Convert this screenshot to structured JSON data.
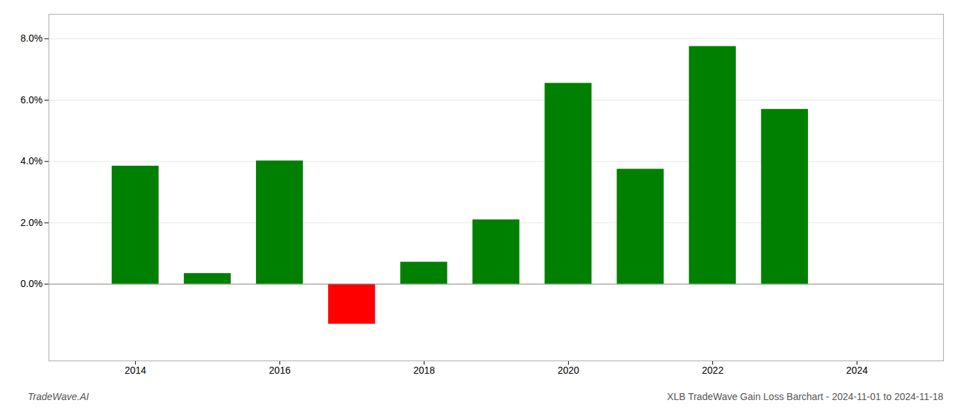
{
  "chart_data": {
    "type": "bar",
    "title": "XLB TradeWave Gain Loss Barchart - 2024-11-01 to 2024-11-18",
    "annotations": [
      "TradeWave.AI"
    ],
    "x": [
      2014,
      2015,
      2016,
      2017,
      2018,
      2019,
      2020,
      2021,
      2022,
      2023
    ],
    "values": [
      0.0385,
      0.0035,
      0.0402,
      -0.013,
      0.0072,
      0.021,
      0.0655,
      0.0375,
      0.0775,
      0.057
    ],
    "colors": [
      "#008000",
      "#008000",
      "#008000",
      "#ff0000",
      "#008000",
      "#008000",
      "#008000",
      "#008000",
      "#008000",
      "#008000"
    ],
    "xlim": [
      2012.8,
      2025.2
    ],
    "xticks": [
      2014,
      2016,
      2018,
      2020,
      2022,
      2024
    ],
    "ylim": [
      -0.025,
      0.088
    ],
    "yticks": [
      {
        "value": 0.0,
        "label": "0.0%"
      },
      {
        "value": 0.02,
        "label": "2.0%"
      },
      {
        "value": 0.04,
        "label": "4.0%"
      },
      {
        "value": 0.06,
        "label": "6.0%"
      },
      {
        "value": 0.08,
        "label": "8.0%"
      }
    ],
    "grid": true
  }
}
